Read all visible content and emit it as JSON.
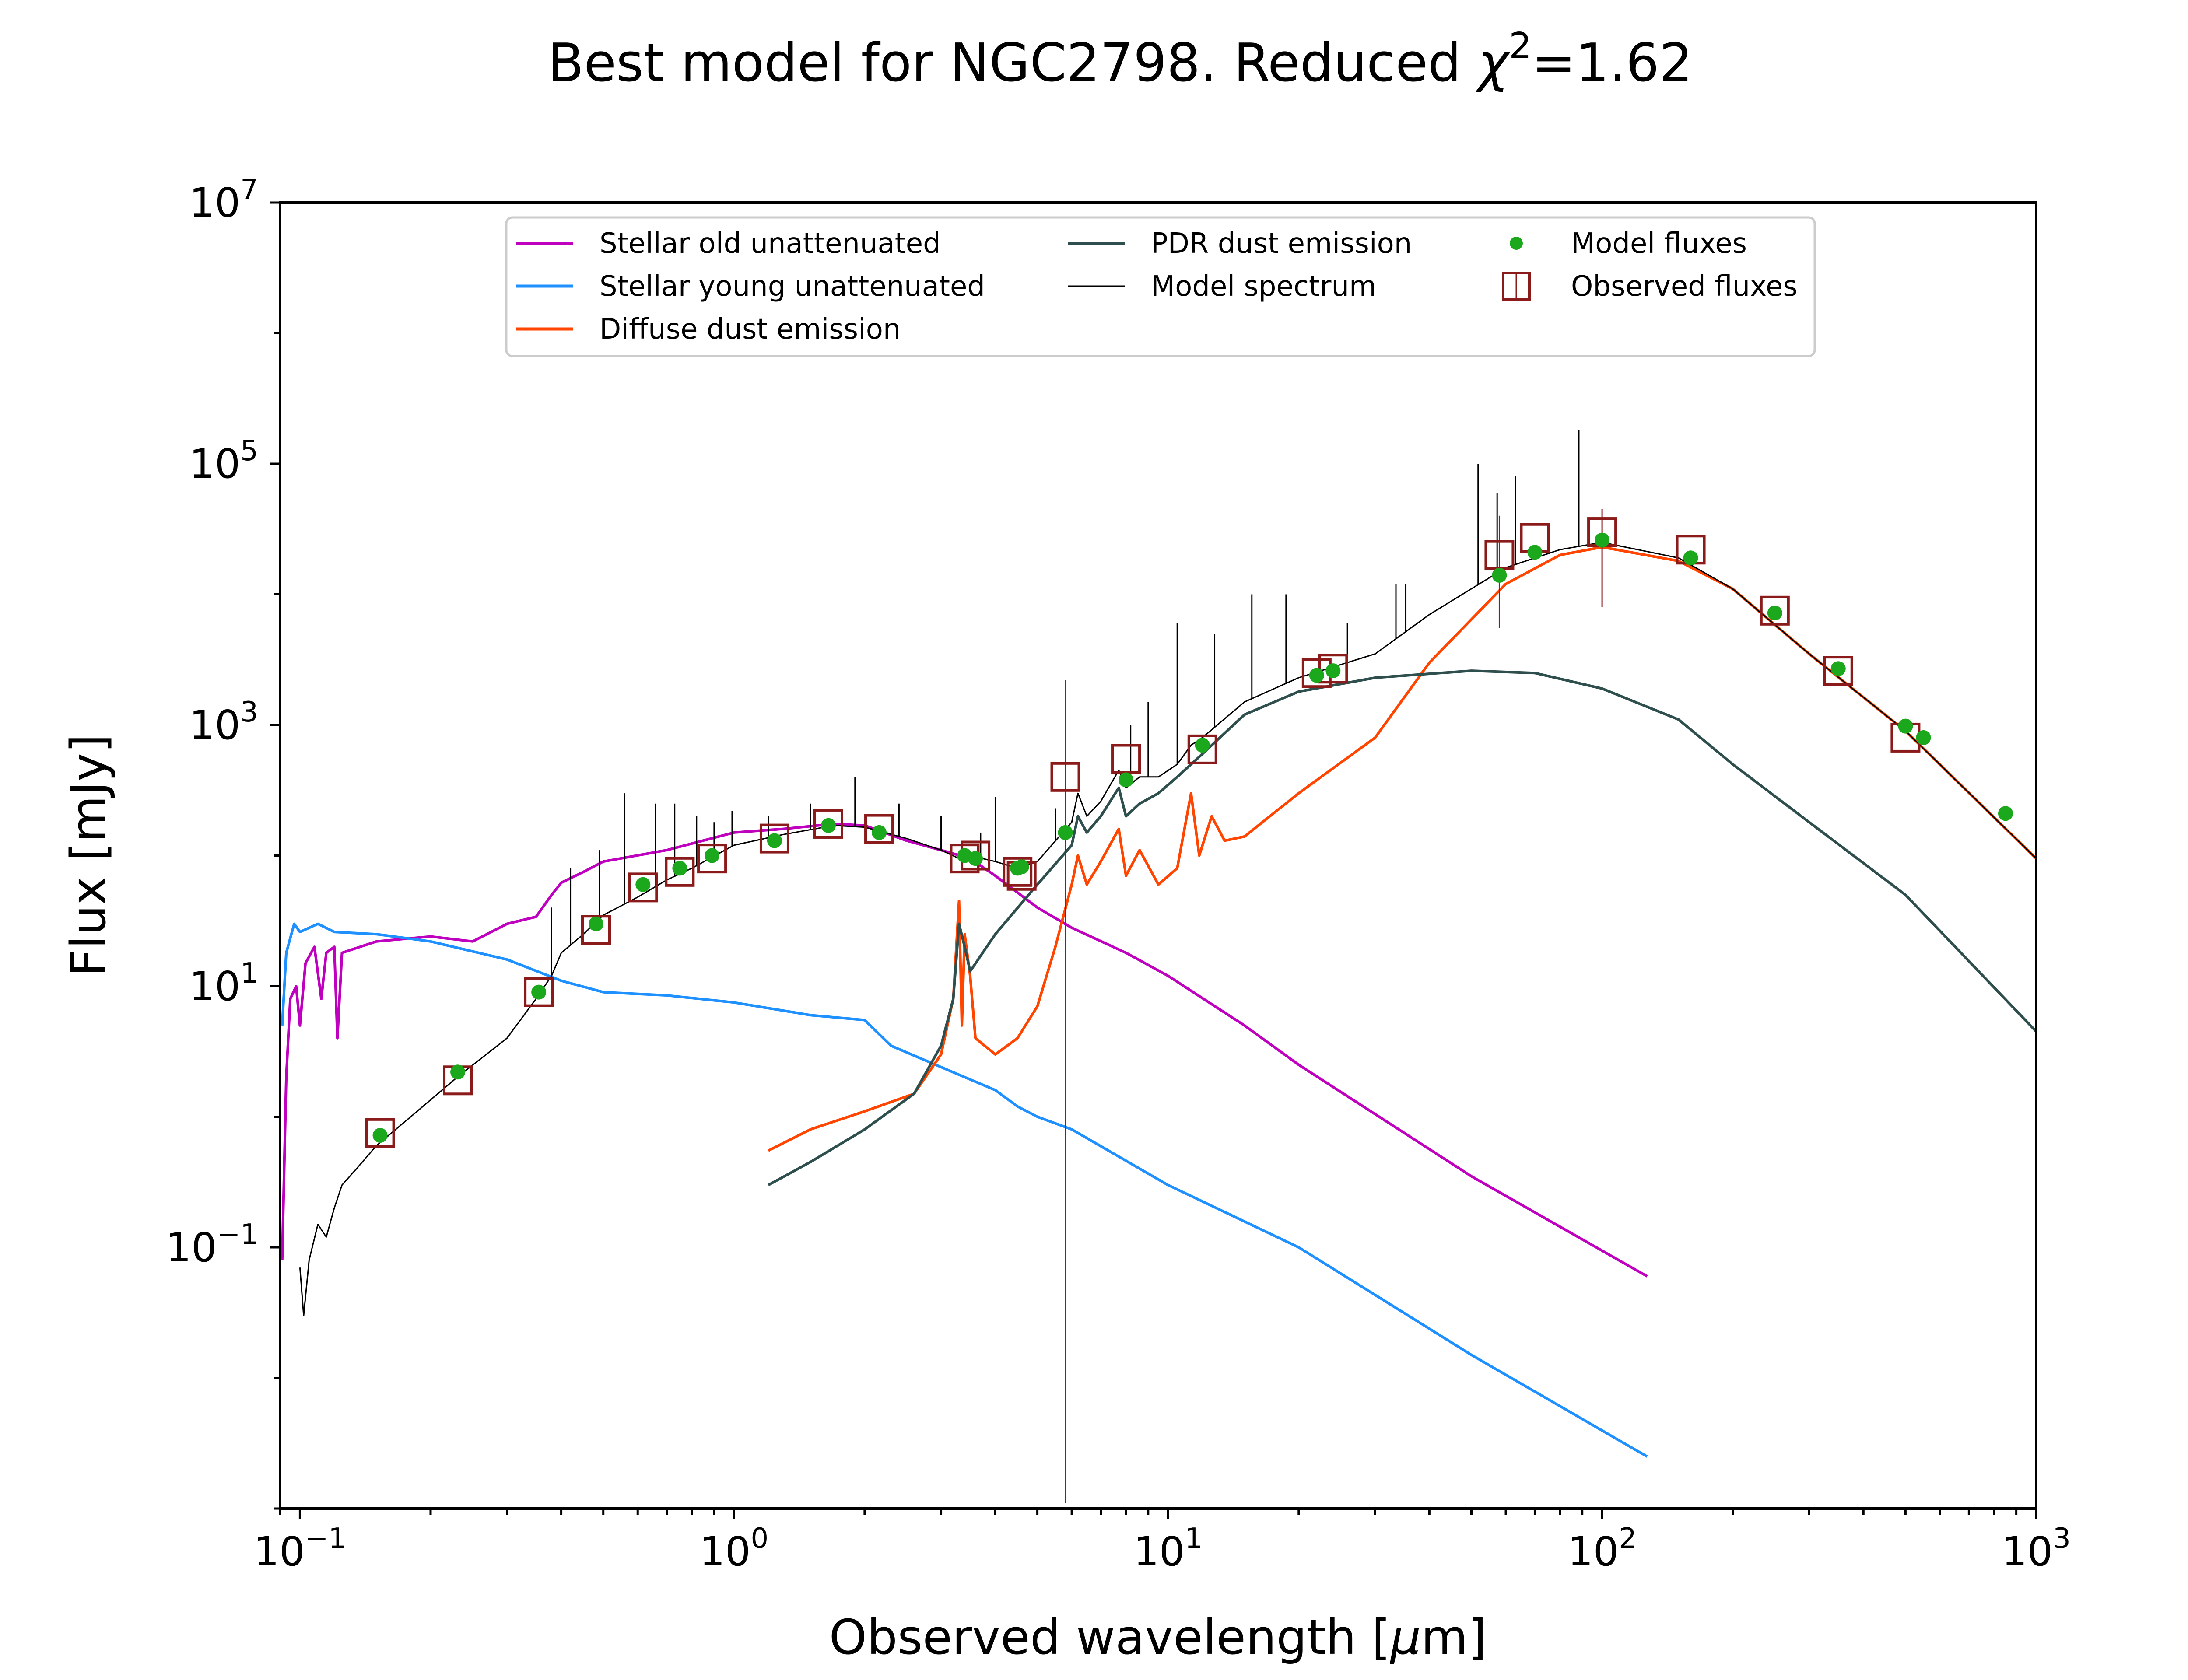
{
  "chart_data": {
    "type": "line",
    "title_prefix": "Best model for NGC2798. Reduced ",
    "title_chi": "χ",
    "title_exp": "2",
    "title_suffix": "=1.62",
    "xlabel_prefix": "Observed wavelength [",
    "xlabel_mu": "μ",
    "xlabel_suffix": "m]",
    "ylabel": "Flux [mJy]",
    "xscale": "log",
    "yscale": "log",
    "xlim": [
      0.09,
      1000
    ],
    "ylim": [
      0.001,
      10000000
    ],
    "x_ticks": [
      {
        "value": 0.1,
        "base": "10",
        "exp": "−1"
      },
      {
        "value": 1,
        "base": "10",
        "exp": "0"
      },
      {
        "value": 10,
        "base": "10",
        "exp": "1"
      },
      {
        "value": 100,
        "base": "10",
        "exp": "2"
      },
      {
        "value": 1000,
        "base": "10",
        "exp": "3"
      }
    ],
    "y_ticks": [
      {
        "value": 0.1,
        "base": "10",
        "exp": "−1"
      },
      {
        "value": 10,
        "base": "10",
        "exp": "1"
      },
      {
        "value": 1000,
        "base": "10",
        "exp": "3"
      },
      {
        "value": 100000,
        "base": "10",
        "exp": "5"
      },
      {
        "value": 10000000,
        "base": "10",
        "exp": "7"
      }
    ],
    "legend_position": "top-center",
    "legend": [
      {
        "label": "Stellar old unattenuated",
        "kind": "line",
        "color": "#bf00bf"
      },
      {
        "label": "Stellar young unattenuated",
        "kind": "line",
        "color": "#1e90ff"
      },
      {
        "label": "Diffuse dust emission",
        "kind": "line",
        "color": "#ff4500"
      },
      {
        "label": "PDR dust emission",
        "kind": "line",
        "color": "#2f4f4f"
      },
      {
        "label": "Model spectrum",
        "kind": "thinline",
        "color": "#000000"
      },
      {
        "label": "Model fluxes",
        "kind": "dot",
        "color": "#1ca81c"
      },
      {
        "label": "Observed fluxes",
        "kind": "square",
        "color": "#8b1a1a"
      }
    ],
    "series": [
      {
        "key": "stellar_old",
        "color": "#bf00bf",
        "width": 6,
        "points": [
          [
            0.091,
            0.08
          ],
          [
            0.093,
            2
          ],
          [
            0.095,
            8
          ],
          [
            0.098,
            10
          ],
          [
            0.1,
            5
          ],
          [
            0.103,
            15
          ],
          [
            0.108,
            20
          ],
          [
            0.112,
            8
          ],
          [
            0.115,
            18
          ],
          [
            0.12,
            20
          ],
          [
            0.122,
            4
          ],
          [
            0.125,
            18
          ],
          [
            0.15,
            22
          ],
          [
            0.2,
            24
          ],
          [
            0.25,
            22
          ],
          [
            0.3,
            30
          ],
          [
            0.35,
            34
          ],
          [
            0.38,
            50
          ],
          [
            0.4,
            62
          ],
          [
            0.45,
            75
          ],
          [
            0.5,
            90
          ],
          [
            0.7,
            110
          ],
          [
            1.0,
            150
          ],
          [
            1.3,
            160
          ],
          [
            1.7,
            175
          ],
          [
            2.0,
            170
          ],
          [
            2.5,
            130
          ],
          [
            3.0,
            110
          ],
          [
            3.5,
            95
          ],
          [
            4.0,
            70
          ],
          [
            5.0,
            40
          ],
          [
            6.0,
            28
          ],
          [
            8.0,
            18
          ],
          [
            10.0,
            12
          ],
          [
            15.0,
            5
          ],
          [
            20.0,
            2.5
          ],
          [
            50.0,
            0.35
          ],
          [
            127.0,
            0.06
          ]
        ]
      },
      {
        "key": "stellar_young",
        "color": "#1e90ff",
        "width": 6,
        "points": [
          [
            0.091,
            5
          ],
          [
            0.093,
            18
          ],
          [
            0.097,
            30
          ],
          [
            0.1,
            26
          ],
          [
            0.11,
            30
          ],
          [
            0.12,
            26
          ],
          [
            0.15,
            25
          ],
          [
            0.2,
            22
          ],
          [
            0.3,
            16
          ],
          [
            0.4,
            11
          ],
          [
            0.5,
            9
          ],
          [
            0.7,
            8.5
          ],
          [
            1.0,
            7.5
          ],
          [
            1.5,
            6
          ],
          [
            2.0,
            5.5
          ],
          [
            2.3,
            3.5
          ],
          [
            3.0,
            2.4
          ],
          [
            4.0,
            1.6
          ],
          [
            4.5,
            1.2
          ],
          [
            5.0,
            1.0
          ],
          [
            6.0,
            0.8
          ],
          [
            10.0,
            0.3
          ],
          [
            20.0,
            0.1
          ],
          [
            50.0,
            0.015
          ],
          [
            127.0,
            0.0025
          ]
        ]
      },
      {
        "key": "diffuse_dust",
        "color": "#ff4500",
        "width": 6,
        "points": [
          [
            1.2,
            0.55
          ],
          [
            1.5,
            0.8
          ],
          [
            2.0,
            1.1
          ],
          [
            2.6,
            1.5
          ],
          [
            3.0,
            3
          ],
          [
            3.2,
            8
          ],
          [
            3.3,
            45
          ],
          [
            3.35,
            5
          ],
          [
            3.4,
            25
          ],
          [
            3.5,
            12
          ],
          [
            3.6,
            4
          ],
          [
            4.0,
            3
          ],
          [
            4.5,
            4
          ],
          [
            5.0,
            7
          ],
          [
            5.5,
            20
          ],
          [
            6.0,
            60
          ],
          [
            6.2,
            100
          ],
          [
            6.5,
            60
          ],
          [
            7.0,
            90
          ],
          [
            7.7,
            160
          ],
          [
            8.0,
            70
          ],
          [
            8.6,
            110
          ],
          [
            9.5,
            60
          ],
          [
            10.5,
            80
          ],
          [
            11.3,
            300
          ],
          [
            11.8,
            100
          ],
          [
            12.6,
            200
          ],
          [
            13.5,
            130
          ],
          [
            15.0,
            140
          ],
          [
            20.0,
            300
          ],
          [
            30.0,
            800
          ],
          [
            40.0,
            3000
          ],
          [
            60.0,
            12000
          ],
          [
            80.0,
            20000
          ],
          [
            100.0,
            23000
          ],
          [
            150.0,
            18000
          ],
          [
            200.0,
            11000
          ],
          [
            300.0,
            3500
          ],
          [
            500.0,
            900
          ],
          [
            1000.0,
            95
          ]
        ]
      },
      {
        "key": "pdr_dust",
        "color": "#2f4f4f",
        "width": 6,
        "points": [
          [
            1.2,
            0.3
          ],
          [
            1.5,
            0.45
          ],
          [
            2.0,
            0.8
          ],
          [
            2.6,
            1.5
          ],
          [
            3.0,
            3.5
          ],
          [
            3.2,
            8
          ],
          [
            3.3,
            30
          ],
          [
            3.4,
            20
          ],
          [
            3.5,
            13
          ],
          [
            4.0,
            25
          ],
          [
            5.0,
            60
          ],
          [
            6.0,
            120
          ],
          [
            6.2,
            200
          ],
          [
            6.5,
            150
          ],
          [
            7.0,
            200
          ],
          [
            7.7,
            330
          ],
          [
            8.0,
            200
          ],
          [
            8.6,
            250
          ],
          [
            9.5,
            300
          ],
          [
            10.5,
            400
          ],
          [
            11.3,
            500
          ],
          [
            12.0,
            600
          ],
          [
            15.0,
            1200
          ],
          [
            20.0,
            1800
          ],
          [
            30.0,
            2300
          ],
          [
            50.0,
            2600
          ],
          [
            70.0,
            2500
          ],
          [
            100.0,
            1900
          ],
          [
            150.0,
            1100
          ],
          [
            200.0,
            500
          ],
          [
            300.0,
            180
          ],
          [
            500.0,
            50
          ],
          [
            1000.0,
            4.5
          ]
        ]
      },
      {
        "key": "model_spectrum",
        "color": "#000000",
        "width": 3,
        "points": [
          [
            0.1,
            0.07
          ],
          [
            0.102,
            0.03
          ],
          [
            0.105,
            0.08
          ],
          [
            0.11,
            0.15
          ],
          [
            0.115,
            0.12
          ],
          [
            0.12,
            0.2
          ],
          [
            0.125,
            0.3
          ],
          [
            0.135,
            0.4
          ],
          [
            0.15,
            0.6
          ],
          [
            0.18,
            1.0
          ],
          [
            0.23,
            2.0
          ],
          [
            0.3,
            4
          ],
          [
            0.35,
            8
          ],
          [
            0.38,
            12
          ],
          [
            0.4,
            18
          ],
          [
            0.45,
            25
          ],
          [
            0.5,
            35
          ],
          [
            0.6,
            48
          ],
          [
            0.7,
            65
          ],
          [
            0.8,
            80
          ],
          [
            1.0,
            120
          ],
          [
            1.3,
            145
          ],
          [
            1.7,
            170
          ],
          [
            2.0,
            165
          ],
          [
            2.5,
            135
          ],
          [
            3.0,
            110
          ],
          [
            3.3,
            95
          ],
          [
            3.5,
            100
          ],
          [
            4.0,
            90
          ],
          [
            4.5,
            80
          ],
          [
            5.0,
            90
          ],
          [
            6.0,
            180
          ],
          [
            6.2,
            300
          ],
          [
            6.5,
            200
          ],
          [
            7.0,
            260
          ],
          [
            7.7,
            450
          ],
          [
            8.0,
            330
          ],
          [
            8.6,
            400
          ],
          [
            9.5,
            400
          ],
          [
            10.5,
            500
          ],
          [
            11.3,
            700
          ],
          [
            12.0,
            800
          ],
          [
            15.0,
            1500
          ],
          [
            20.0,
            2300
          ],
          [
            30.0,
            3500
          ],
          [
            40.0,
            7000
          ],
          [
            60.0,
            16000
          ],
          [
            80.0,
            22000
          ],
          [
            100.0,
            25000
          ],
          [
            150.0,
            19000
          ],
          [
            200.0,
            11000
          ],
          [
            300.0,
            3500
          ],
          [
            500.0,
            900
          ],
          [
            1000.0,
            95
          ]
        ]
      }
    ],
    "spikes": [
      [
        0.38,
        40
      ],
      [
        0.42,
        80
      ],
      [
        0.49,
        110
      ],
      [
        0.56,
        300
      ],
      [
        0.66,
        250
      ],
      [
        0.73,
        250
      ],
      [
        0.82,
        200
      ],
      [
        0.9,
        180
      ],
      [
        0.99,
        220
      ],
      [
        1.2,
        200
      ],
      [
        1.5,
        250
      ],
      [
        1.9,
        400
      ],
      [
        2.4,
        250
      ],
      [
        3.0,
        200
      ],
      [
        3.7,
        150
      ],
      [
        4.0,
        280
      ],
      [
        5.5,
        230
      ],
      [
        8.2,
        1000
      ],
      [
        9.0,
        1500
      ],
      [
        10.5,
        6000
      ],
      [
        12.8,
        5000
      ],
      [
        15.6,
        10000
      ],
      [
        18.7,
        10000
      ],
      [
        25.9,
        6000
      ],
      [
        33.5,
        12000
      ],
      [
        35.3,
        12000
      ],
      [
        51.8,
        100000
      ],
      [
        57.3,
        60000
      ],
      [
        63.2,
        80000
      ],
      [
        88.4,
        180000
      ]
    ],
    "model_fluxes": [
      [
        0.153,
        0.72
      ],
      [
        0.231,
        2.2
      ],
      [
        0.355,
        9
      ],
      [
        0.481,
        30
      ],
      [
        0.617,
        60
      ],
      [
        0.75,
        80
      ],
      [
        0.89,
        100
      ],
      [
        1.24,
        130
      ],
      [
        1.65,
        170
      ],
      [
        2.16,
        150
      ],
      [
        3.4,
        100
      ],
      [
        3.6,
        95
      ],
      [
        4.5,
        80
      ],
      [
        4.6,
        82
      ],
      [
        5.8,
        150
      ],
      [
        8.0,
        380
      ],
      [
        12.0,
        700
      ],
      [
        22.0,
        2400
      ],
      [
        24.0,
        2600
      ],
      [
        58.0,
        14000
      ],
      [
        70.0,
        21000
      ],
      [
        100.0,
        26000
      ],
      [
        160.0,
        19000
      ],
      [
        250.0,
        7200
      ],
      [
        350.0,
        2700
      ],
      [
        500.0,
        980
      ],
      [
        550.0,
        800
      ],
      [
        850.0,
        210
      ]
    ],
    "observed_fluxes": [
      [
        0.153,
        0.75
      ],
      [
        0.231,
        1.9
      ],
      [
        0.355,
        9
      ],
      [
        0.481,
        27
      ],
      [
        0.617,
        57
      ],
      [
        0.75,
        75
      ],
      [
        0.89,
        95
      ],
      [
        1.24,
        135
      ],
      [
        1.65,
        175
      ],
      [
        2.16,
        160
      ],
      [
        3.4,
        95
      ],
      [
        3.6,
        100
      ],
      [
        4.5,
        75
      ],
      [
        4.6,
        70
      ],
      [
        5.8,
        400
      ],
      [
        8.0,
        550
      ],
      [
        12.0,
        650
      ],
      [
        22.0,
        2500
      ],
      [
        24.0,
        2700
      ],
      [
        58.0,
        20000
      ],
      [
        70.0,
        27000
      ],
      [
        100.0,
        30000
      ],
      [
        160.0,
        22000
      ],
      [
        250.0,
        7500
      ],
      [
        350.0,
        2600
      ],
      [
        500.0,
        800
      ]
    ],
    "error_bars": [
      {
        "x": 5.8,
        "low": 0.0011,
        "high": 2200
      },
      {
        "x": 58.0,
        "low": 5500,
        "high": 40000
      },
      {
        "x": 100.0,
        "low": 8000,
        "high": 45000
      }
    ]
  }
}
